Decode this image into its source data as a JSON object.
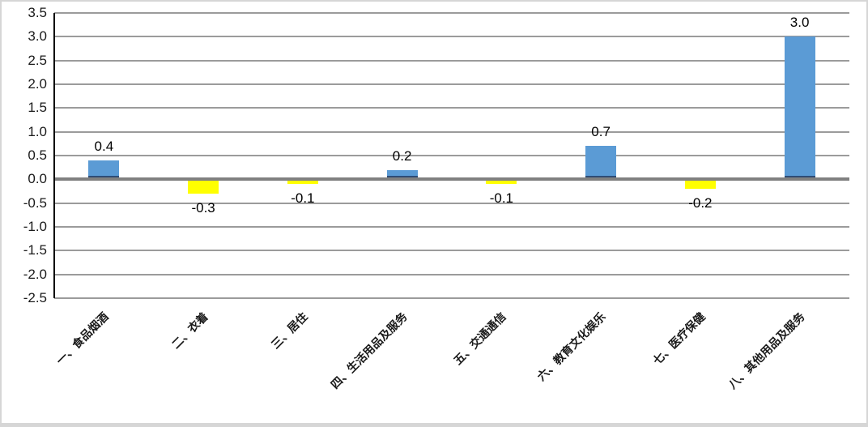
{
  "chart_data": {
    "type": "bar",
    "title": "",
    "xlabel": "",
    "ylabel": "",
    "categories": [
      "一、食品烟酒",
      "二、衣着",
      "三、居住",
      "四、生活用品及服务",
      "五、交通通信",
      "六、教育文化娱乐",
      "七、医疗保健",
      "八、其他用品及服务"
    ],
    "values": [
      0.4,
      -0.3,
      -0.1,
      0.2,
      -0.1,
      0.7,
      -0.2,
      3.0
    ],
    "data_labels": [
      "0.4",
      "-0.3",
      "-0.1",
      "0.2",
      "-0.1",
      "0.7",
      "-0.2",
      "3.0"
    ],
    "ylim": [
      -2.5,
      3.5
    ],
    "ytick_step": 0.5,
    "grid": true,
    "legend": false,
    "colors": {
      "bar_positive": "#5B9BD5",
      "bar_positive_edge": "#2E4D76",
      "bar_negative": "#FFFF00",
      "gridline": "#9B9B9B",
      "zero_line": "#808080",
      "axis_line": "#000000",
      "tick_label": "#1A1A1A",
      "data_label": "#000000",
      "frame_border": "#D6D6D6"
    }
  }
}
